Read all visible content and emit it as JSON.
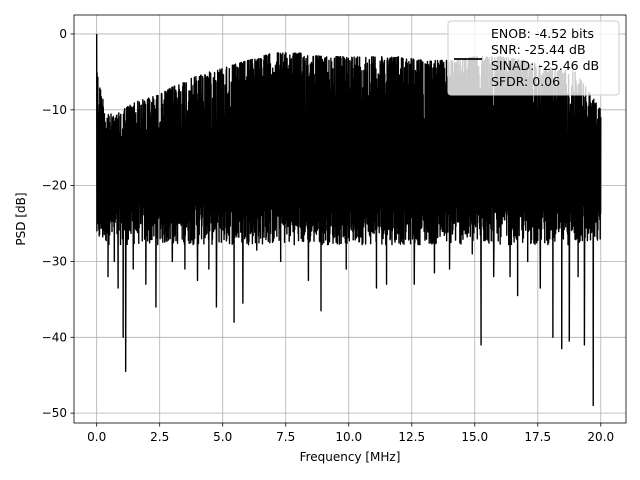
{
  "chart_data": {
    "type": "line",
    "title": "",
    "xlabel": "Frequency [MHz]",
    "ylabel": "PSD [dB]",
    "xlim": [
      -0.9,
      21.0
    ],
    "ylim": [
      -51.3,
      2.5
    ],
    "xticks": [
      0.0,
      2.5,
      5.0,
      7.5,
      10.0,
      12.5,
      15.0,
      17.5,
      20.0
    ],
    "xtick_labels": [
      "0.0",
      "2.5",
      "5.0",
      "7.5",
      "10.0",
      "12.5",
      "15.0",
      "17.5",
      "20.0"
    ],
    "yticks": [
      0,
      -10,
      -20,
      -30,
      -40,
      -50
    ],
    "ytick_labels": [
      "0",
      "−10",
      "−20",
      "−30",
      "−40",
      "−50"
    ],
    "grid": true,
    "legend_position": "top-right",
    "series": [
      {
        "name": "ENOB: -4.52 bits\nSNR: -25.44 dB\nSINAD: -25.46 dB\nSFDR: 0.06",
        "color": "#000000",
        "style": "noise",
        "x_range": [
          0.0,
          20.0
        ],
        "upper_envelope": {
          "x": [
            0.0,
            0.05,
            0.1,
            0.2,
            0.4,
            0.7,
            1.0,
            1.5,
            2.0,
            2.5,
            3.0,
            4.0,
            5.0,
            6.0,
            7.0,
            8.0,
            9.0,
            10.0,
            11.0,
            12.0,
            13.0,
            14.0,
            15.0,
            16.0,
            17.0,
            18.0,
            19.0,
            20.0
          ],
          "y": [
            0.0,
            -6.0,
            -6.5,
            -8.0,
            -10.0,
            -11.0,
            -10.0,
            -9.0,
            -8.5,
            -8.0,
            -7.0,
            -5.5,
            -4.5,
            -3.5,
            -2.5,
            -2.5,
            -3.0,
            -3.0,
            -3.0,
            -3.0,
            -3.5,
            -3.5,
            -3.0,
            -3.0,
            -3.5,
            -4.5,
            -5.0,
            -10.0
          ]
        },
        "lower_floor_typical": -26.0,
        "deep_dips": [
          {
            "x": 0.05,
            "y": -25.0
          },
          {
            "x": 0.45,
            "y": -32.0
          },
          {
            "x": 0.7,
            "y": -30.0
          },
          {
            "x": 0.85,
            "y": -33.5
          },
          {
            "x": 1.05,
            "y": -40.0
          },
          {
            "x": 1.15,
            "y": -44.5
          },
          {
            "x": 1.45,
            "y": -31.0
          },
          {
            "x": 1.95,
            "y": -33.0
          },
          {
            "x": 2.35,
            "y": -36.0
          },
          {
            "x": 3.0,
            "y": -30.0
          },
          {
            "x": 3.5,
            "y": -31.0
          },
          {
            "x": 4.0,
            "y": -32.5
          },
          {
            "x": 4.45,
            "y": -31.0
          },
          {
            "x": 4.75,
            "y": -36.0
          },
          {
            "x": 5.45,
            "y": -38.0
          },
          {
            "x": 5.8,
            "y": -35.5
          },
          {
            "x": 6.35,
            "y": -28.5
          },
          {
            "x": 7.3,
            "y": -30.0
          },
          {
            "x": 8.4,
            "y": -32.5
          },
          {
            "x": 8.9,
            "y": -36.5
          },
          {
            "x": 9.9,
            "y": -31.0
          },
          {
            "x": 11.1,
            "y": -33.5
          },
          {
            "x": 11.5,
            "y": -33.0
          },
          {
            "x": 12.6,
            "y": -33.0
          },
          {
            "x": 13.4,
            "y": -31.5
          },
          {
            "x": 14.0,
            "y": -31.0
          },
          {
            "x": 14.9,
            "y": -29.0
          },
          {
            "x": 15.25,
            "y": -41.0
          },
          {
            "x": 15.75,
            "y": -32.0
          },
          {
            "x": 16.4,
            "y": -32.0
          },
          {
            "x": 16.7,
            "y": -34.5
          },
          {
            "x": 17.1,
            "y": -30.0
          },
          {
            "x": 17.6,
            "y": -33.5
          },
          {
            "x": 18.1,
            "y": -40.0
          },
          {
            "x": 18.45,
            "y": -41.5
          },
          {
            "x": 18.75,
            "y": -40.5
          },
          {
            "x": 19.1,
            "y": -32.0
          },
          {
            "x": 19.35,
            "y": -41.0
          },
          {
            "x": 19.7,
            "y": -49.0
          }
        ]
      }
    ]
  },
  "legend": {
    "lines": [
      "ENOB: -4.52 bits",
      "SNR: -25.44 dB",
      "SINAD: -25.46 dB",
      "SFDR: 0.06"
    ]
  }
}
